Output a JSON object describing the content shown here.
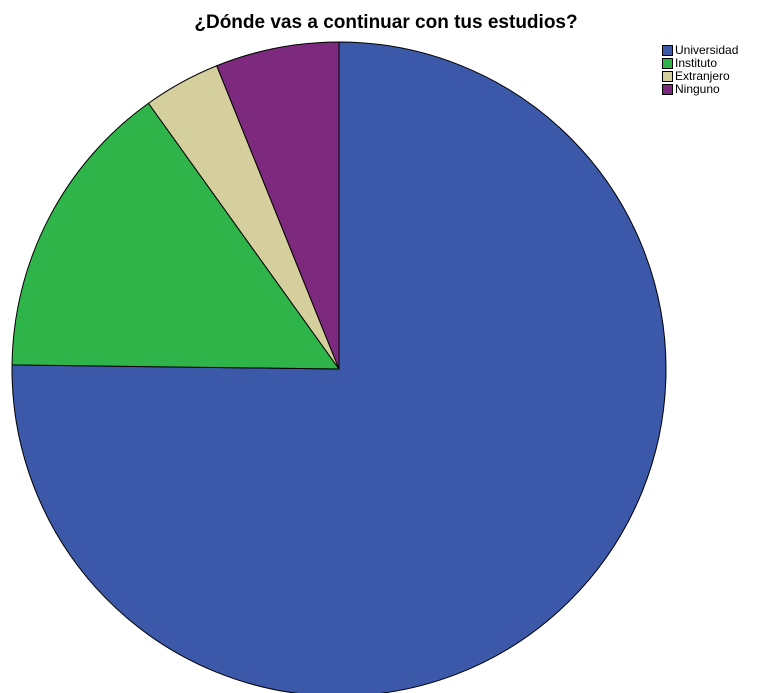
{
  "chart_data": {
    "type": "pie",
    "title": "¿Dónde vas a continuar con tus estudios?",
    "categories": [
      "Universidad",
      "Instituto",
      "Extranjero",
      "Ninguno"
    ],
    "values": [
      75.2,
      14.9,
      3.8,
      6.1
    ],
    "unit": "percent",
    "colors": [
      "#3C58A8",
      "#2FB44A",
      "#D5CF9D",
      "#7D2A7E"
    ],
    "legend": "top-right",
    "start": "12 o'clock",
    "direction": "clockwise"
  }
}
